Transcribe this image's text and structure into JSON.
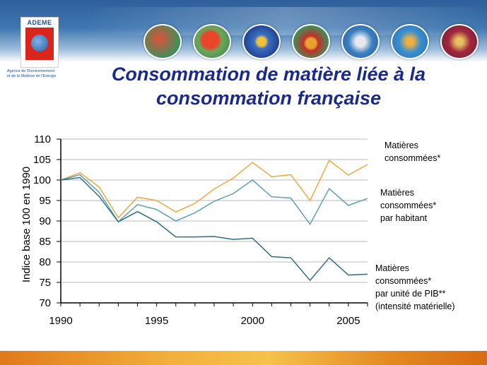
{
  "logo": {
    "name": "ADEME",
    "subtitle_line1": "Agence de l'Environnement",
    "subtitle_line2": "et de la Maîtrise de l'Energie"
  },
  "header_icons": [
    "balloon-icon",
    "france-map-icon",
    "sun-globe-icon",
    "house-icon",
    "solar-panel-icon",
    "waves-icon",
    "hammer-icon"
  ],
  "slide": {
    "title_line1": "Consommation de matière liée à la",
    "title_line2": "consommation française"
  },
  "colors": {
    "title": "#1a2a8c",
    "series_total": "#f0a840",
    "series_per_capita": "#5f9fb8",
    "series_gdp": "#2f6f86",
    "grid": "#b8b8b8"
  },
  "chart_data": {
    "type": "line",
    "ylabel": "Indice base 100 en 1990",
    "xlabel": "",
    "xlim": [
      1990,
      2006
    ],
    "ylim": [
      70,
      110
    ],
    "yticks": [
      "70",
      "75",
      "80",
      "85",
      "90",
      "95",
      "100",
      "105",
      "110"
    ],
    "xticks": [
      "1990",
      "1995",
      "2000",
      "2005"
    ],
    "grid": "horizontal",
    "x": [
      1990,
      1991,
      1992,
      1993,
      1994,
      1995,
      1996,
      1997,
      1998,
      1999,
      2000,
      2001,
      2002,
      2003,
      2004,
      2005,
      2006
    ],
    "series": [
      {
        "label_lines": [
          "Matières",
          "consommées*"
        ],
        "color": "#f0a840",
        "values": [
          100,
          101.8,
          98.3,
          90.8,
          95.8,
          95.0,
          92.2,
          94.3,
          97.8,
          100.5,
          104.3,
          100.8,
          101.3,
          95.0,
          104.8,
          101.2,
          103.8
        ]
      },
      {
        "label_lines": [
          "Matières",
          "consommées*",
          "par habitant"
        ],
        "color": "#5f9fb8",
        "values": [
          100,
          101.3,
          97.0,
          89.8,
          94.0,
          92.8,
          90.0,
          92.0,
          94.8,
          96.7,
          100.0,
          95.9,
          95.6,
          89.2,
          97.9,
          93.8,
          95.5
        ]
      },
      {
        "label_lines": [
          "Matières",
          "consommées*",
          "par unité de PIB**",
          "(intensité matérielle)"
        ],
        "color": "#2f6f86",
        "values": [
          100,
          100.6,
          96.0,
          89.8,
          92.3,
          89.8,
          86.1,
          86.1,
          86.2,
          85.5,
          85.8,
          81.3,
          81.0,
          75.5,
          81.0,
          76.8,
          77.0
        ]
      }
    ]
  }
}
